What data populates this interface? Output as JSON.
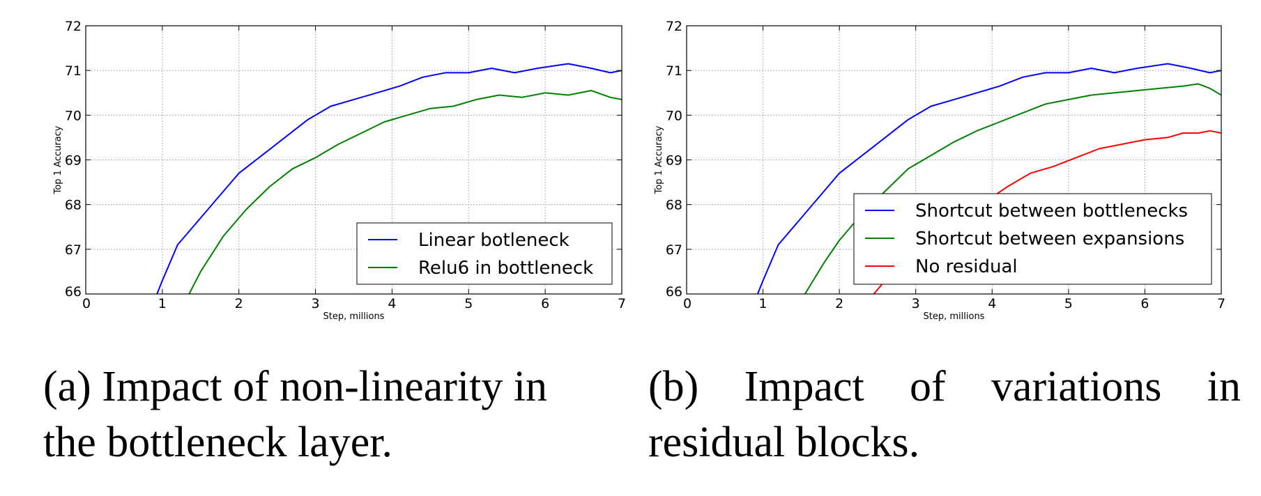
{
  "chart_data": [
    {
      "type": "line",
      "xlabel": "Step, millions",
      "ylabel": "Top 1 Accuracy",
      "xlim": [
        0,
        7
      ],
      "ylim": [
        66,
        72
      ],
      "xticks": [
        "0",
        "1",
        "2",
        "3",
        "4",
        "5",
        "6",
        "7"
      ],
      "yticks": [
        "66",
        "67",
        "68",
        "69",
        "70",
        "71",
        "72"
      ],
      "grid": true,
      "legend_position": "lower-right",
      "series": [
        {
          "name": "Linear botleneck",
          "color": "#0000ff",
          "x": [
            0.93,
            1.0,
            1.2,
            1.5,
            1.8,
            2.0,
            2.3,
            2.6,
            2.9,
            3.2,
            3.5,
            3.8,
            4.1,
            4.4,
            4.7,
            5.0,
            5.3,
            5.6,
            5.9,
            6.3,
            6.6,
            6.85,
            7.0
          ],
          "y": [
            66.0,
            66.3,
            67.1,
            67.7,
            68.3,
            68.7,
            69.1,
            69.5,
            69.9,
            70.2,
            70.35,
            70.5,
            70.65,
            70.85,
            70.95,
            70.95,
            71.05,
            70.95,
            71.05,
            71.15,
            71.05,
            70.95,
            71.0
          ]
        },
        {
          "name": "Relu6 in bottleneck",
          "color": "#008000",
          "x": [
            1.35,
            1.5,
            1.8,
            2.1,
            2.4,
            2.7,
            3.0,
            3.3,
            3.6,
            3.9,
            4.2,
            4.5,
            4.8,
            5.1,
            5.4,
            5.7,
            6.0,
            6.3,
            6.6,
            6.85,
            7.0
          ],
          "y": [
            66.0,
            66.5,
            67.3,
            67.9,
            68.4,
            68.8,
            69.05,
            69.35,
            69.6,
            69.85,
            70.0,
            70.15,
            70.2,
            70.35,
            70.45,
            70.4,
            70.5,
            70.45,
            70.55,
            70.4,
            70.35
          ]
        }
      ]
    },
    {
      "type": "line",
      "xlabel": "Step, millions",
      "ylabel": "Top 1 Accuracy",
      "xlim": [
        0,
        7
      ],
      "ylim": [
        66,
        72
      ],
      "xticks": [
        "0",
        "1",
        "2",
        "3",
        "4",
        "5",
        "6",
        "7"
      ],
      "yticks": [
        "66",
        "67",
        "68",
        "69",
        "70",
        "71",
        "72"
      ],
      "grid": true,
      "legend_position": "lower-right",
      "series": [
        {
          "name": "Shortcut between bottlenecks",
          "color": "#0000ff",
          "x": [
            0.93,
            1.0,
            1.2,
            1.5,
            1.8,
            2.0,
            2.3,
            2.6,
            2.9,
            3.2,
            3.5,
            3.8,
            4.1,
            4.4,
            4.7,
            5.0,
            5.3,
            5.6,
            5.9,
            6.3,
            6.6,
            6.85,
            7.0
          ],
          "y": [
            66.0,
            66.3,
            67.1,
            67.7,
            68.3,
            68.7,
            69.1,
            69.5,
            69.9,
            70.2,
            70.35,
            70.5,
            70.65,
            70.85,
            70.95,
            70.95,
            71.05,
            70.95,
            71.05,
            71.15,
            71.05,
            70.95,
            71.0
          ]
        },
        {
          "name": "Shortcut between expansions",
          "color": "#008000",
          "x": [
            1.55,
            1.8,
            2.0,
            2.3,
            2.6,
            2.9,
            3.2,
            3.5,
            3.8,
            4.1,
            4.4,
            4.7,
            5.0,
            5.3,
            5.6,
            5.9,
            6.2,
            6.5,
            6.7,
            6.85,
            7.0
          ],
          "y": [
            66.0,
            66.7,
            67.2,
            67.8,
            68.3,
            68.8,
            69.1,
            69.4,
            69.65,
            69.85,
            70.05,
            70.25,
            70.35,
            70.45,
            70.5,
            70.55,
            70.6,
            70.65,
            70.7,
            70.6,
            70.45
          ]
        },
        {
          "name": "No residual",
          "color": "#ff0000",
          "x": [
            2.45,
            2.7,
            3.0,
            3.3,
            3.6,
            3.9,
            4.2,
            4.5,
            4.8,
            5.1,
            5.4,
            5.7,
            6.0,
            6.3,
            6.5,
            6.7,
            6.85,
            7.0
          ],
          "y": [
            66.0,
            66.5,
            67.0,
            67.4,
            67.75,
            68.05,
            68.4,
            68.7,
            68.85,
            69.05,
            69.25,
            69.35,
            69.45,
            69.5,
            69.6,
            69.6,
            69.65,
            69.6
          ]
        }
      ]
    }
  ],
  "captions": {
    "a": {
      "line1": "(a) Impact of non-linearity in",
      "line2": "the bottleneck layer."
    },
    "b": {
      "line1_words": [
        "(b)",
        "Impact",
        "of",
        "variations",
        "in"
      ],
      "line2": "residual blocks."
    }
  }
}
